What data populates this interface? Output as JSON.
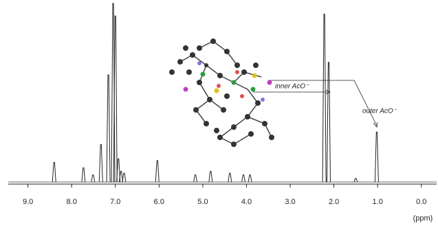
{
  "chart_data": {
    "type": "spectrum",
    "x_label": "(ppm)",
    "annotations": [
      "inner AcO⁻",
      "outer AcO⁻"
    ],
    "color": "#222222",
    "x": [
      8.4,
      7.73,
      7.51,
      7.33,
      7.16,
      7.05,
      7.0,
      6.93,
      6.87,
      6.8,
      6.04,
      5.17,
      4.82,
      4.38,
      4.07,
      3.92,
      2.22,
      2.12,
      1.5,
      1.02
    ],
    "values": [
      11,
      8,
      4,
      21,
      60,
      100,
      93,
      13,
      6,
      5,
      12,
      4,
      6,
      5,
      4,
      4,
      94,
      67,
      2,
      28
    ],
    "xlim": [
      9.45,
      -0.35
    ],
    "ylim": [
      0,
      100
    ],
    "xticks": [
      {
        "value": 9,
        "label": "9.0"
      },
      {
        "value": 8,
        "label": "8.0"
      },
      {
        "value": 7,
        "label": "7.0"
      },
      {
        "value": 6,
        "label": "6.0"
      },
      {
        "value": 5,
        "label": "5.0"
      },
      {
        "value": 4,
        "label": "4.0"
      },
      {
        "value": 3,
        "label": "3.0"
      },
      {
        "value": 2,
        "label": "2.0"
      },
      {
        "value": 1,
        "label": "1.0"
      },
      {
        "value": 0,
        "label": "0.0"
      }
    ]
  }
}
